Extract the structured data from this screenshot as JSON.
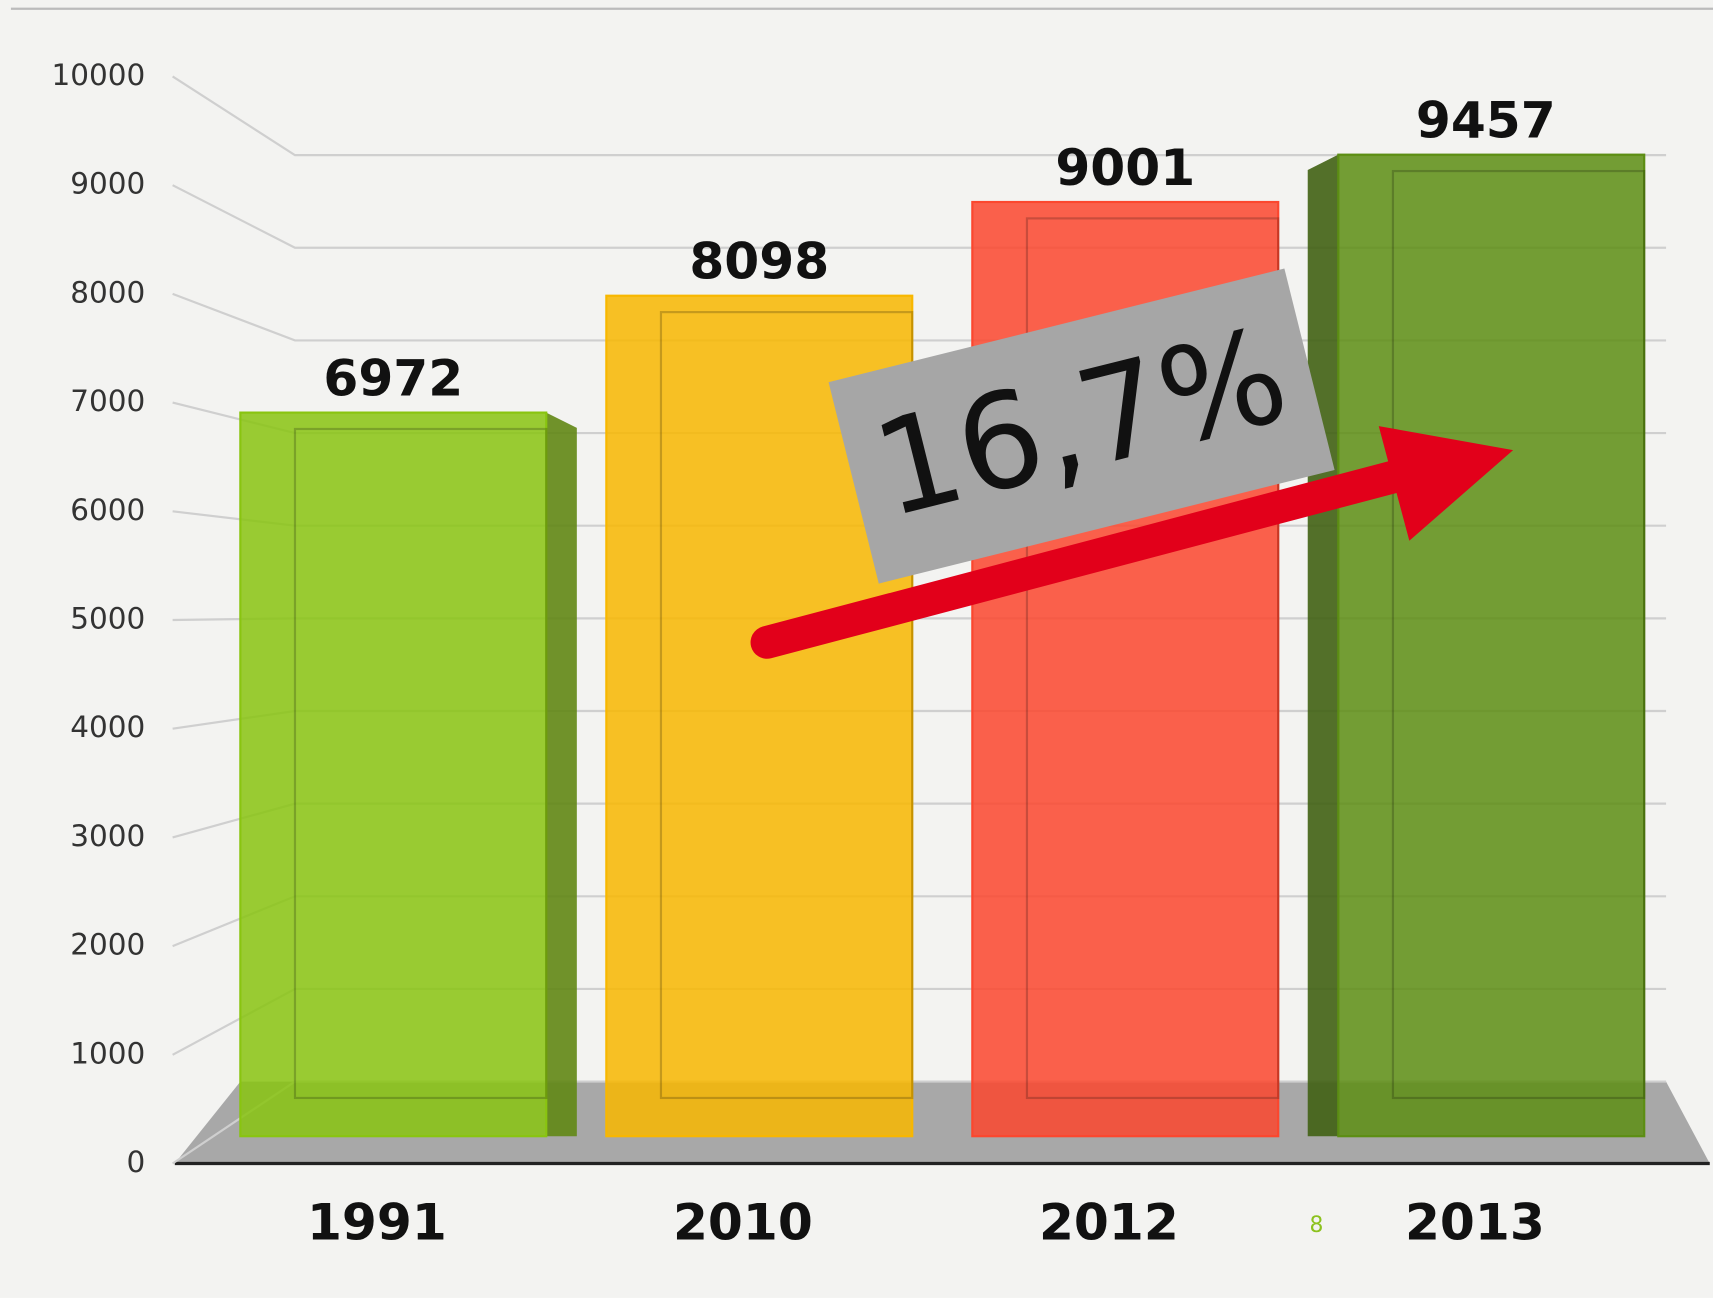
{
  "chart_data": {
    "type": "bar3d",
    "categories": [
      "1991",
      "2010",
      "2012",
      "2013"
    ],
    "values": [
      6972,
      8098,
      9001,
      9457
    ],
    "colors": [
      "#8cc21e",
      "#f2b705",
      "#ee4a34",
      "#5f8c1c"
    ],
    "ylim": [
      0,
      10000
    ],
    "yticks": [
      0,
      1000,
      2000,
      3000,
      4000,
      5000,
      6000,
      7000,
      8000,
      9000,
      10000
    ],
    "grid": true,
    "annotation": "16,7%",
    "page_number": "8"
  }
}
